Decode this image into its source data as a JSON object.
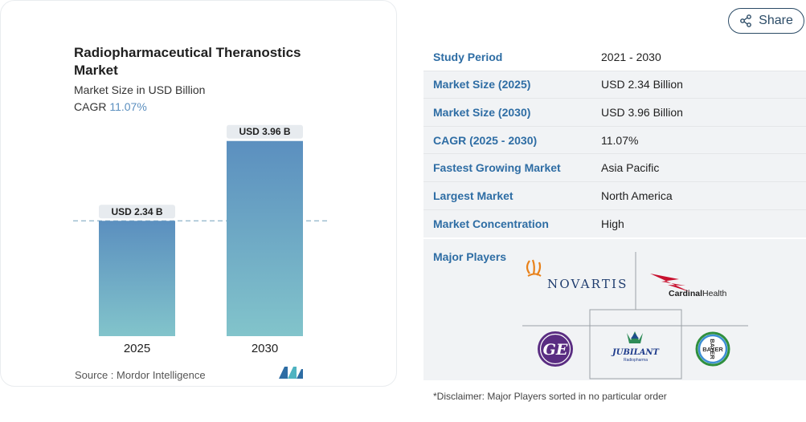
{
  "chart_card": {
    "title": "Radiopharmaceutical Theranostics Market",
    "subtitle": "Market Size in USD Billion",
    "cagr_label": "CAGR",
    "cagr_value": "11.07%",
    "source": "Source :  Mordor Intelligence",
    "accent": "#5b8fbf"
  },
  "chart_data": {
    "type": "bar",
    "categories": [
      "2025",
      "2030"
    ],
    "values": [
      2.34,
      3.96
    ],
    "data_labels": [
      "USD 2.34 B",
      "USD 3.96 B"
    ],
    "title": "Radiopharmaceutical Theranostics Market",
    "subtitle": "Market Size in USD Billion",
    "ylim": [
      0,
      4.2
    ],
    "grid": false,
    "reference_line": 2.34,
    "bar_gradient": [
      "#5b8fbf",
      "#82c4cb"
    ]
  },
  "share": {
    "label": "Share",
    "icon": "share-icon"
  },
  "info": {
    "rows": [
      {
        "key": "Study Period",
        "value": "2021 - 2030"
      },
      {
        "key": "Market Size (2025)",
        "value": "USD 2.34 Billion"
      },
      {
        "key": "Market Size (2030)",
        "value": "USD 3.96 Billion"
      },
      {
        "key": "CAGR (2025 - 2030)",
        "value": "11.07%"
      },
      {
        "key": "Fastest Growing Market",
        "value": "Asia Pacific"
      },
      {
        "key": "Largest Market",
        "value": "North America"
      },
      {
        "key": "Market Concentration",
        "value": "High"
      }
    ],
    "players_label": "Major Players",
    "players": {
      "novartis": "NOVARTIS",
      "cardinal_a": "Cardinal",
      "cardinal_b": "Health",
      "ge": "GE",
      "jubilant_a": "JUBILANT",
      "jubilant_b": "Radiopharma",
      "bayer_h": "BAYER",
      "bayer_v": "BAYER"
    },
    "disclaimer": "*Disclaimer: Major Players sorted in no particular order"
  }
}
